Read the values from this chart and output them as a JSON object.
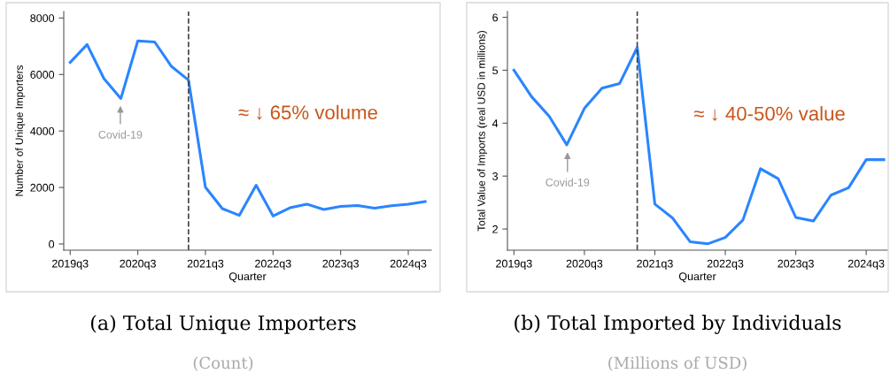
{
  "chart_data": [
    {
      "type": "line",
      "title": "(a) Total Unique Importers",
      "subtitle": "(Count)",
      "xlabel": "Quarter",
      "ylabel": "Number of Unique Importers",
      "categories": [
        "2019q3",
        null,
        null,
        null,
        "2020q3",
        null,
        null,
        null,
        "2021q3",
        null,
        null,
        null,
        "2022q3",
        null,
        null,
        null,
        "2023q3",
        null,
        null,
        null,
        "2024q3",
        null
      ],
      "series": [
        {
          "color": "#2a85ff",
          "values": [
            6430,
            7060,
            5850,
            5150,
            7190,
            7150,
            6280,
            5800,
            2010,
            1250,
            1010,
            2080,
            990,
            1280,
            1410,
            1220,
            1330,
            1360,
            1270,
            1350,
            1410,
            1500
          ]
        }
      ],
      "ylim": [
        -220,
        8230
      ],
      "yticks": [
        0,
        2000,
        4000,
        6000,
        8000
      ],
      "annotations": [
        "Covid-19",
        "≈ ↓ 65% volume"
      ],
      "marker": "none",
      "line_style": "solid"
    },
    {
      "type": "line",
      "title": "(b) Total Imported by Individuals",
      "subtitle": "(Millions of USD)",
      "xlabel": "Quarter",
      "ylabel": "Total Value of Imports (real USD in millions)",
      "categories": [
        "2019q3",
        null,
        null,
        null,
        "2020q3",
        null,
        null,
        null,
        "2021q3",
        null,
        null,
        null,
        "2022q3",
        null,
        null,
        null,
        "2023q3",
        null,
        null,
        null,
        "2024q3",
        null
      ],
      "series": [
        {
          "color": "#2a85ff",
          "values": [
            5.0,
            4.5,
            4.13,
            3.59,
            4.28,
            4.66,
            4.75,
            5.43,
            2.47,
            2.21,
            1.76,
            1.72,
            1.84,
            2.17,
            3.14,
            2.95,
            2.22,
            2.15,
            2.64,
            2.78,
            3.31,
            3.31
          ]
        }
      ],
      "ylim": [
        1.6,
        6.11
      ],
      "yticks": [
        2,
        3,
        4,
        5,
        6
      ],
      "annotations": [
        "Covid-19",
        "≈ ↓ 40-50% value"
      ],
      "marker": "none",
      "line_style": "solid"
    }
  ]
}
